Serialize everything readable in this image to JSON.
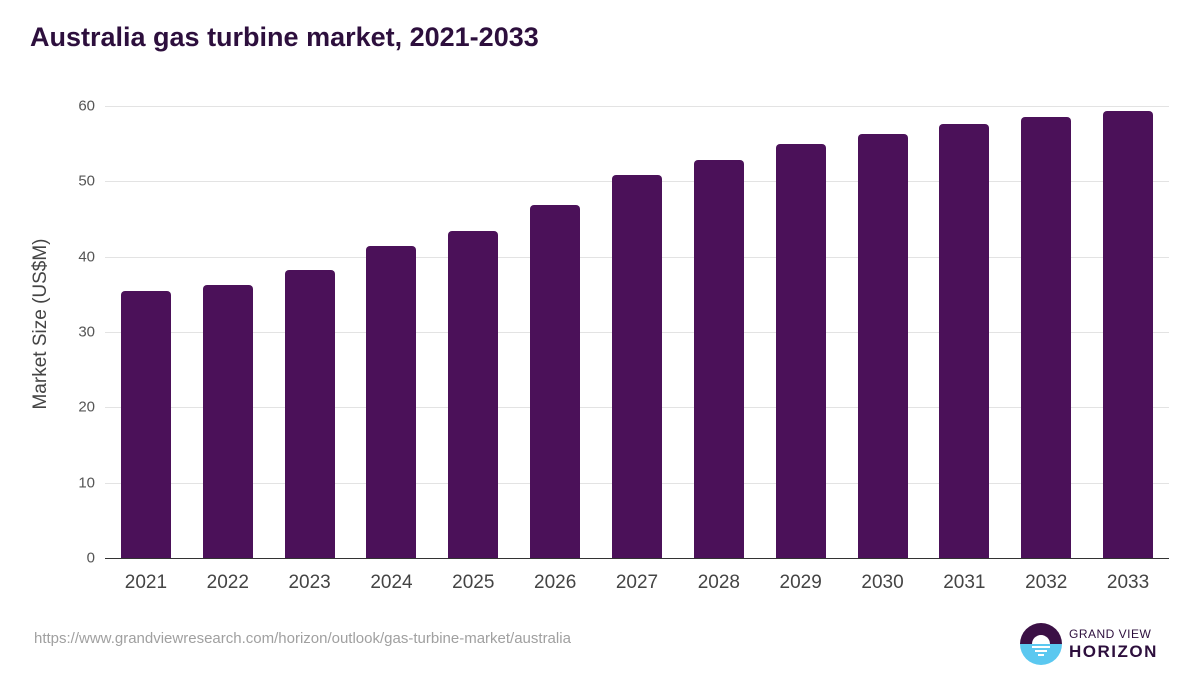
{
  "title": "Australia gas turbine market, 2021-2033",
  "source_url": "https://www.grandviewresearch.com/horizon/outlook/gas-turbine-market/australia",
  "logo": {
    "line1": "GRAND VIEW",
    "line2": "HORIZON",
    "icon": "horizon-sun-icon"
  },
  "colors": {
    "bar": "#4b1159",
    "title": "#2d0f3d",
    "logo_top": "#3b1045",
    "logo_bottom": "#5bc8f0"
  },
  "chart_data": {
    "type": "bar",
    "title": "Australia gas turbine market, 2021-2033",
    "xlabel": "",
    "ylabel": "Market Size (US$M)",
    "categories": [
      "2021",
      "2022",
      "2023",
      "2024",
      "2025",
      "2026",
      "2027",
      "2028",
      "2029",
      "2030",
      "2031",
      "2032",
      "2033"
    ],
    "values": [
      35.4,
      36.3,
      38.2,
      41.4,
      43.4,
      46.9,
      50.9,
      52.9,
      54.9,
      56.3,
      57.6,
      58.6,
      59.4
    ],
    "ylim": [
      0,
      60
    ],
    "yticks": [
      0,
      10,
      20,
      30,
      40,
      50,
      60
    ],
    "grid": true,
    "legend": null
  }
}
